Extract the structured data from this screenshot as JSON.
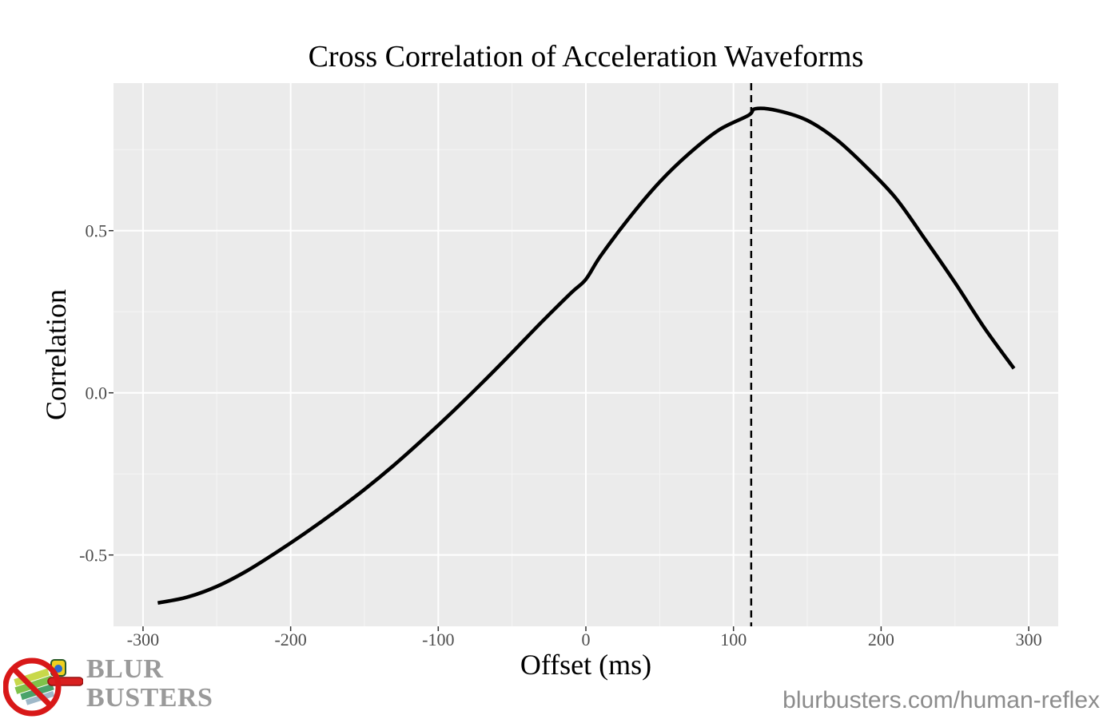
{
  "chart_data": {
    "type": "line",
    "title": "Cross Correlation of Acceleration Waveforms",
    "xlabel": "Offset (ms)",
    "ylabel": "Correlation",
    "xlim": [
      -320,
      320
    ],
    "ylim": [
      -0.72,
      0.955
    ],
    "x_ticks": [
      -300,
      -200,
      -100,
      0,
      100,
      200,
      300
    ],
    "x_tick_labels": [
      "-300",
      "-200",
      "-100",
      "0",
      "100",
      "200",
      "300"
    ],
    "y_ticks": [
      -0.5,
      0.0,
      0.5
    ],
    "y_tick_labels": [
      "-0.5",
      "0.0",
      "0.5"
    ],
    "grid": true,
    "panel_background": "#ebebeb",
    "series": [
      {
        "color": "#000000",
        "x": [
          -290,
          -270,
          -250,
          -230,
          -210,
          -190,
          -170,
          -150,
          -130,
          -110,
          -90,
          -70,
          -50,
          -30,
          -10,
          0,
          10,
          30,
          50,
          70,
          90,
          110,
          115,
          130,
          150,
          170,
          190,
          210,
          230,
          250,
          270,
          290
        ],
        "y": [
          -0.648,
          -0.63,
          -0.597,
          -0.55,
          -0.493,
          -0.432,
          -0.367,
          -0.298,
          -0.223,
          -0.142,
          -0.057,
          0.032,
          0.124,
          0.218,
          0.308,
          0.35,
          0.422,
          0.543,
          0.65,
          0.738,
          0.81,
          0.855,
          0.876,
          0.87,
          0.84,
          0.78,
          0.696,
          0.6,
          0.472,
          0.34,
          0.2,
          0.075
        ]
      }
    ],
    "vline": {
      "x": 112,
      "style": "dashed",
      "color": "#000000"
    }
  },
  "brand": {
    "line1": "BLUR",
    "line2": "BUSTERS",
    "logo_icon": "no-blur-icon"
  },
  "source_url": "blurbusters.com/human-reflex"
}
